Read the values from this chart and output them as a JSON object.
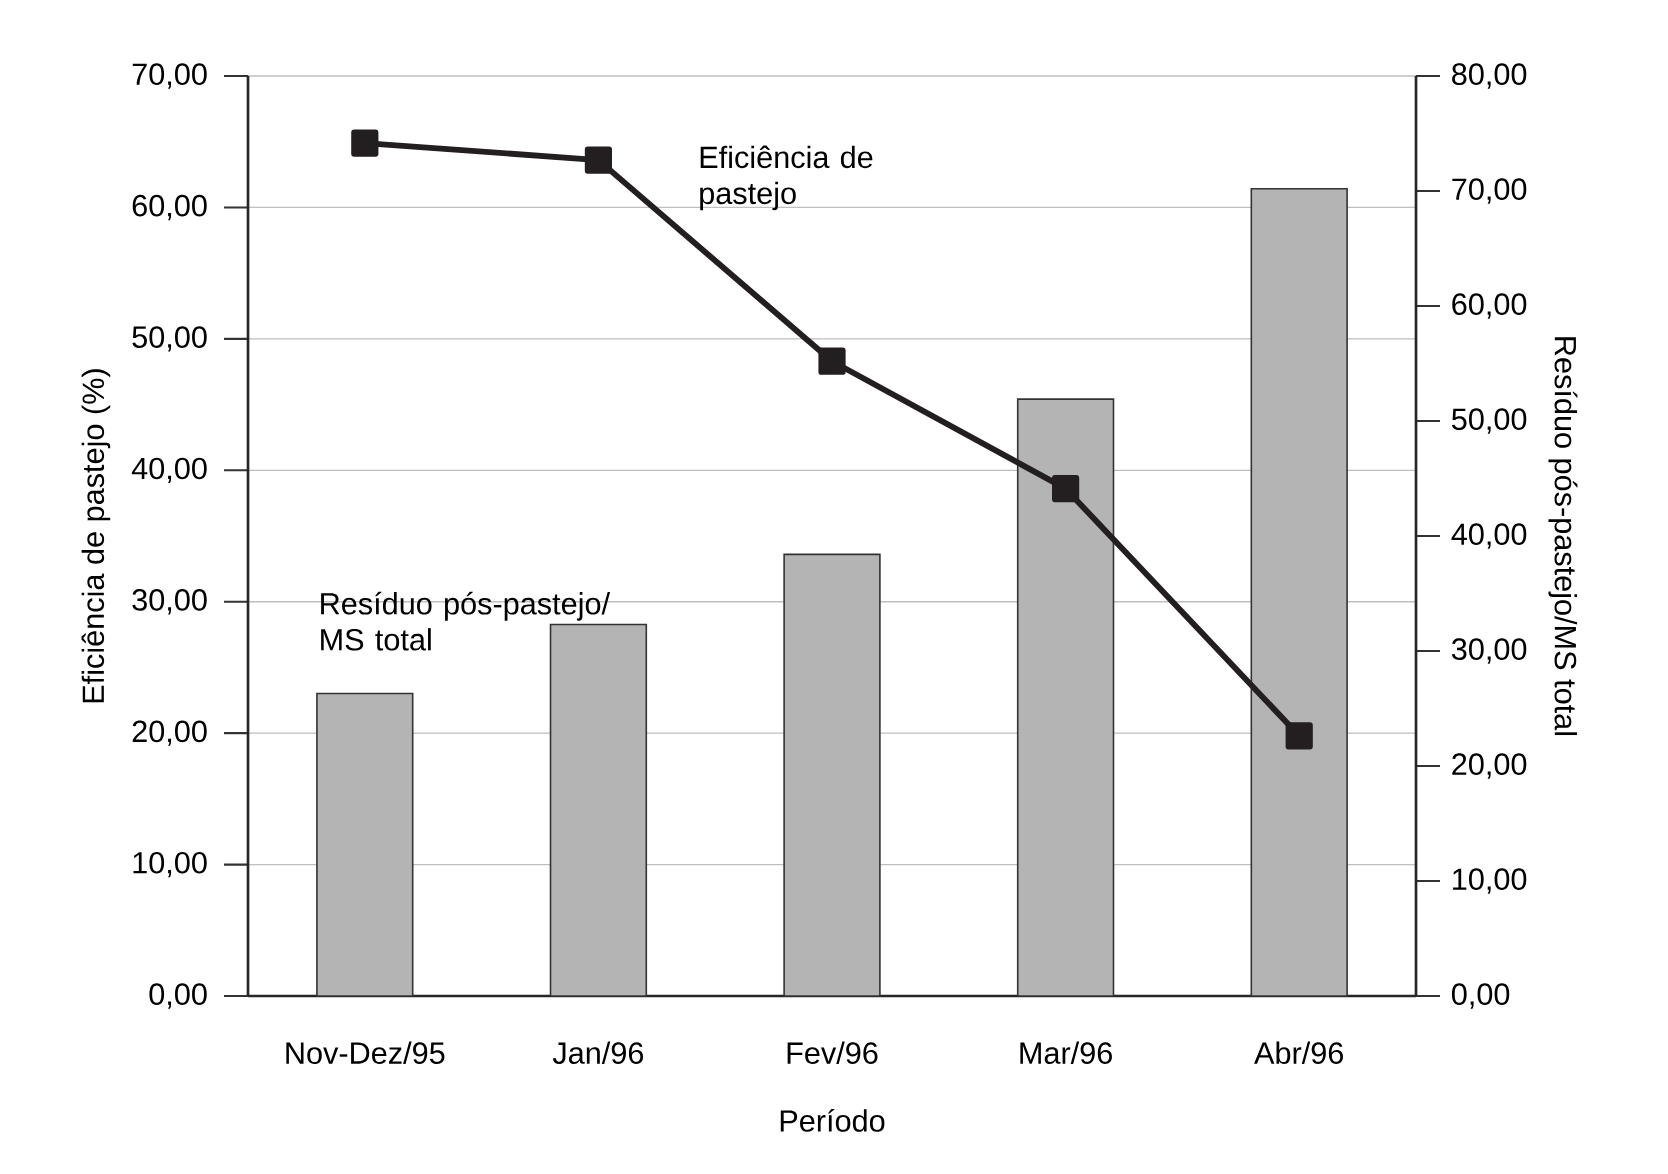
{
  "chart_data": {
    "type": "bar",
    "xlabel": "Período",
    "ylabel": "Eficiência de pastejo (%)",
    "y2label": "Resíduo pós-pastejo/MS total",
    "categories": [
      "Nov-Dez/95",
      "Jan/96",
      "Fev/96",
      "Mar/96",
      "Abr/96"
    ],
    "series": [
      {
        "name": "Resíduo pós-pastejo/ MS total",
        "axis": "y2",
        "color": "#b4b4b4",
        "values": [
          26.3,
          32.3,
          38.4,
          51.9,
          70.2
        ]
      },
      {
        "name": "Eficiência de pastejo",
        "type": "line",
        "axis": "y",
        "color": "#231f20",
        "marker": "square",
        "values": [
          64.9,
          63.6,
          48.3,
          38.6,
          19.8
        ]
      }
    ],
    "ylim": [
      0,
      70
    ],
    "yticks": [
      {
        "value": 0,
        "label": "0,00"
      },
      {
        "value": 10,
        "label": "10,00"
      },
      {
        "value": 20,
        "label": "20,00"
      },
      {
        "value": 30,
        "label": "30,00"
      },
      {
        "value": 40,
        "label": "40,00"
      },
      {
        "value": 50,
        "label": "50,00"
      },
      {
        "value": 60,
        "label": "60,00"
      },
      {
        "value": 70,
        "label": "70,00"
      }
    ],
    "y2lim": [
      0,
      80
    ],
    "y2ticks": [
      {
        "value": 0,
        "label": "0,00"
      },
      {
        "value": 10,
        "label": "10,00"
      },
      {
        "value": 20,
        "label": "20,00"
      },
      {
        "value": 30,
        "label": "30,00"
      },
      {
        "value": 40,
        "label": "40,00"
      },
      {
        "value": 50,
        "label": "50,00"
      },
      {
        "value": 60,
        "label": "60,00"
      },
      {
        "value": 70,
        "label": "70,00"
      },
      {
        "value": 80,
        "label": "80,00"
      }
    ],
    "grid": "y"
  }
}
